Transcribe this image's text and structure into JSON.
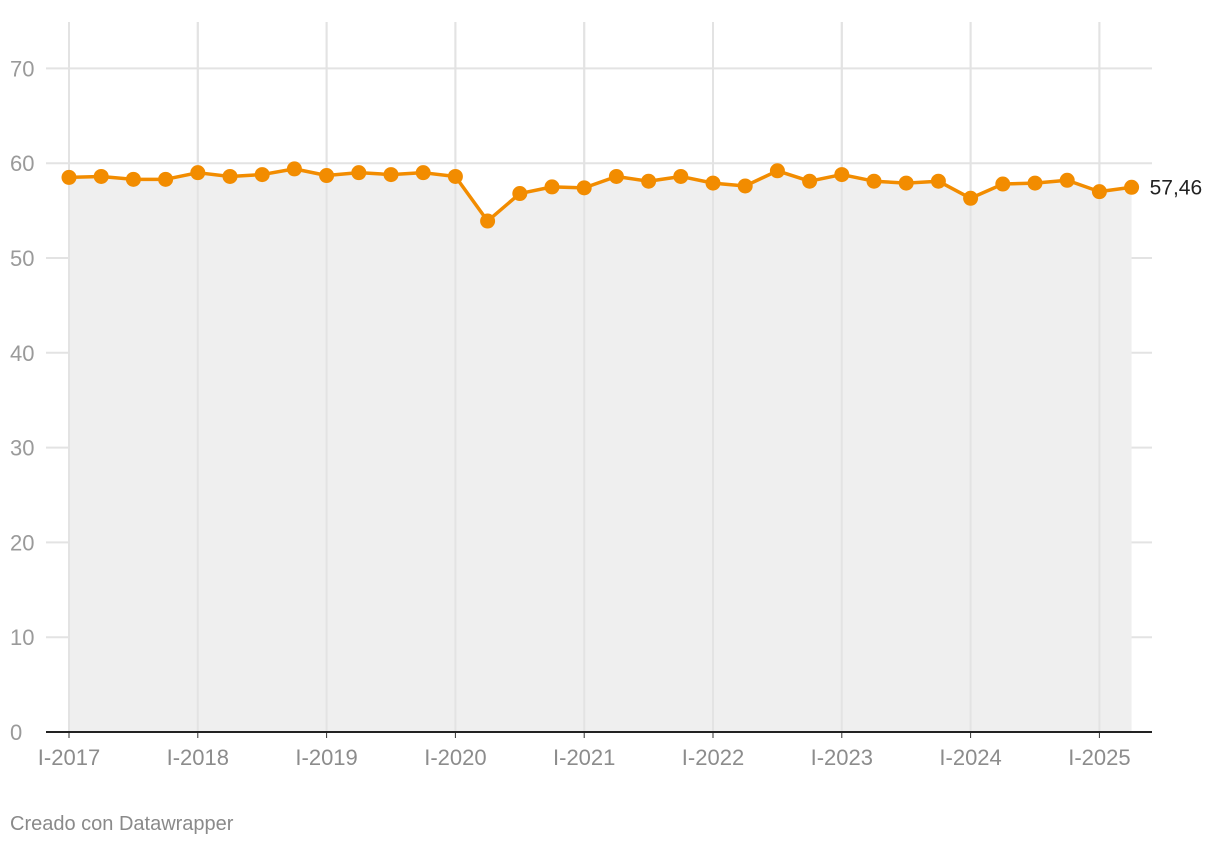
{
  "chart_data": {
    "type": "area",
    "x": [
      "2017-Q1",
      "2017-Q2",
      "2017-Q3",
      "2017-Q4",
      "2018-Q1",
      "2018-Q2",
      "2018-Q3",
      "2018-Q4",
      "2019-Q1",
      "2019-Q2",
      "2019-Q3",
      "2019-Q4",
      "2020-Q1",
      "2020-Q2",
      "2020-Q3",
      "2020-Q4",
      "2021-Q1",
      "2021-Q2",
      "2021-Q3",
      "2021-Q4",
      "2022-Q1",
      "2022-Q2",
      "2022-Q3",
      "2022-Q4",
      "2023-Q1",
      "2023-Q2",
      "2023-Q3",
      "2023-Q4",
      "2024-Q1",
      "2024-Q2",
      "2024-Q3",
      "2024-Q4",
      "2025-Q1",
      "2025-Q2"
    ],
    "series": [
      {
        "values": [
          58.5,
          58.6,
          58.3,
          58.3,
          59.0,
          58.6,
          58.8,
          59.4,
          58.7,
          59.0,
          58.8,
          59.0,
          58.6,
          53.9,
          56.8,
          57.5,
          57.4,
          58.6,
          58.1,
          58.6,
          57.9,
          57.6,
          59.2,
          58.1,
          58.8,
          58.1,
          57.9,
          58.1,
          56.3,
          57.8,
          57.9,
          58.2,
          57.0,
          57.46
        ],
        "color": "#f28c00"
      }
    ],
    "end_label": "57,46",
    "x_tick_labels": [
      "I-2017",
      "I-2018",
      "I-2019",
      "I-2020",
      "I-2021",
      "I-2022",
      "I-2023",
      "I-2024",
      "I-2025"
    ],
    "y_ticks": [
      0,
      10,
      20,
      30,
      40,
      50,
      60,
      70
    ],
    "ylim": [
      0,
      75
    ],
    "grid": true,
    "fill_color": "#efefef",
    "title": "",
    "xlabel": "",
    "ylabel": ""
  },
  "footer": {
    "credit": "Creado con Datawrapper"
  }
}
